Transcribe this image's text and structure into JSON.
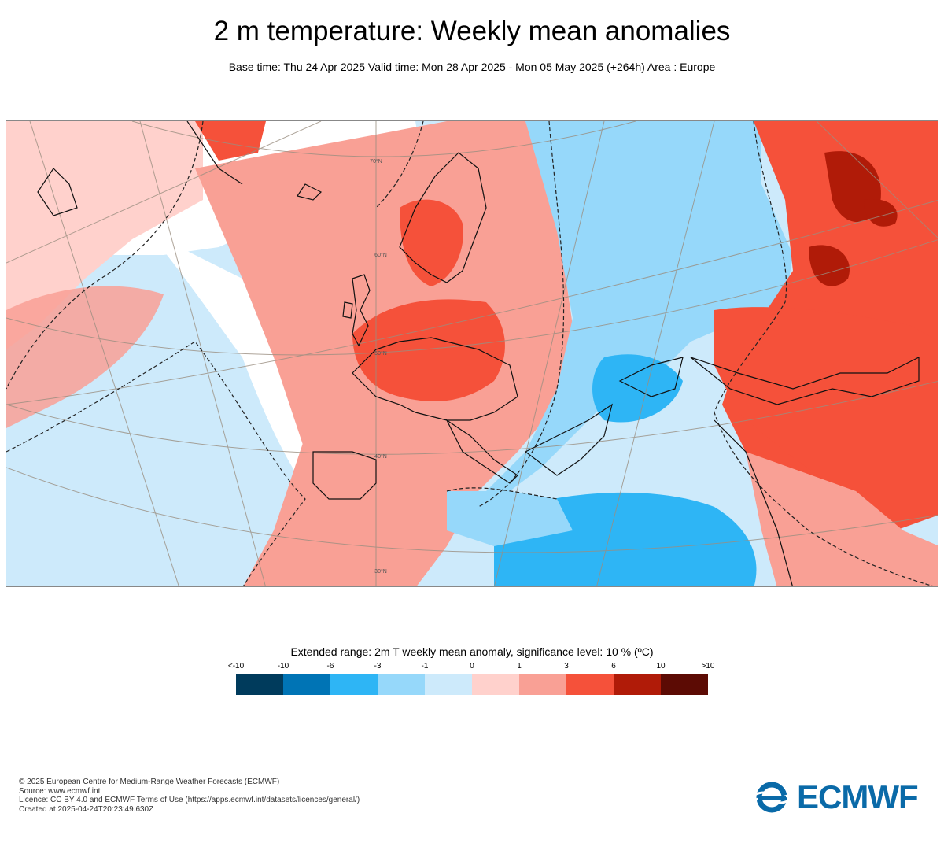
{
  "header": {
    "title": "2 m temperature: Weekly mean anomalies",
    "subtitle": "Base time: Thu 24 Apr 2025 Valid time: Mon 28 Apr 2025 - Mon 05 May 2025 (+264h) Area : Europe"
  },
  "map": {
    "lat_labels": [
      "70°N",
      "60°N",
      "50°N",
      "40°N",
      "30°N"
    ]
  },
  "legend": {
    "title": "Extended range: 2m T weekly mean anomaly, significance level: 10 % (ºC)",
    "labels": [
      "<-10",
      "-10",
      "-6",
      "-3",
      "-1",
      "0",
      "1",
      "3",
      "6",
      "10",
      ">10"
    ],
    "colors": [
      "#003b5c",
      "#0074b5",
      "#2eb5f5",
      "#96d8fa",
      "#cdeafb",
      "#ffd1cc",
      "#f9a095",
      "#f5513a",
      "#b01b08",
      "#5c0b04"
    ]
  },
  "footer": {
    "copyright": "© 2025 European Centre for Medium-Range Weather Forecasts (ECMWF)",
    "source": "Source: www.ecmwf.int",
    "licence": "Licence: CC BY 4.0 and ECMWF Terms of Use (https://apps.ecmwf.int/datasets/licences/general/)",
    "created": "Created at 2025-04-24T20:23:49.630Z"
  },
  "logo": {
    "text": "ECMWF"
  }
}
